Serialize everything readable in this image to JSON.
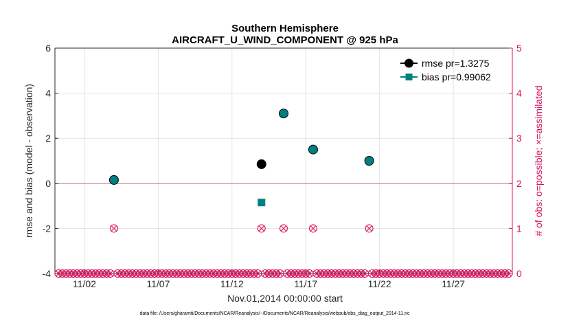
{
  "chart_data": {
    "type": "scatter",
    "title": "Southern Hemisphere",
    "subtitle": "AIRCRAFT_U_WIND_COMPONENT @ 925 hPa",
    "xlabel": "Nov.01,2014 00:00:00 start",
    "ylabel": "rmse and bias (model - observation)",
    "y2label": "# of obs: o=possible; ×=assimilated",
    "x_start": "2014-10-31",
    "x_end": "2014-12-01",
    "x_tick_dates": [
      "2014-11-02",
      "2014-11-07",
      "2014-11-12",
      "2014-11-17",
      "2014-11-22",
      "2014-11-27"
    ],
    "x_tick_labels": [
      "11/02",
      "11/07",
      "11/12",
      "11/17",
      "11/22",
      "11/27"
    ],
    "ylim": [
      -4,
      6
    ],
    "y_ticks": [
      -4,
      -2,
      0,
      2,
      4,
      6
    ],
    "y2lim": [
      0,
      5
    ],
    "y2_ticks": [
      0,
      1,
      2,
      3,
      4,
      5
    ],
    "grid": true,
    "legend_position": "top-right",
    "series": [
      {
        "name": "rmse pr=1.3275",
        "marker": "circle",
        "color": "#000000",
        "points": [
          {
            "x": "2014-11-04",
            "y": 0.15
          },
          {
            "x": "2014-11-14",
            "y": 0.85
          },
          {
            "x": "2014-11-15.5",
            "y": 3.1
          },
          {
            "x": "2014-11-17.5",
            "y": 1.5
          },
          {
            "x": "2014-11-21.3",
            "y": 1.0
          }
        ]
      },
      {
        "name": "bias pr=0.99062",
        "marker": "square",
        "color": "#008080",
        "points": [
          {
            "x": "2014-11-04",
            "y": 0.15
          },
          {
            "x": "2014-11-14",
            "y": -0.85
          },
          {
            "x": "2014-11-15.5",
            "y": 3.1
          },
          {
            "x": "2014-11-17.5",
            "y": 1.5
          },
          {
            "x": "2014-11-21.3",
            "y": 1.0
          }
        ]
      }
    ],
    "obs_count": {
      "color": "#d6135f",
      "nonzero": [
        {
          "x": "2014-11-04",
          "count": 1
        },
        {
          "x": "2014-11-14",
          "count": 1
        },
        {
          "x": "2014-11-15.5",
          "count": 1
        },
        {
          "x": "2014-11-17.5",
          "count": 1
        },
        {
          "x": "2014-11-21.3",
          "count": 1
        }
      ],
      "zero_row_value": 0
    },
    "footnote": "data file: /Users/gharamti/Documents/NCAR/Reanalysis/~/Documents/NCAR/Reanalysis/webpub/obs_diag_output_2014-11.nc"
  }
}
